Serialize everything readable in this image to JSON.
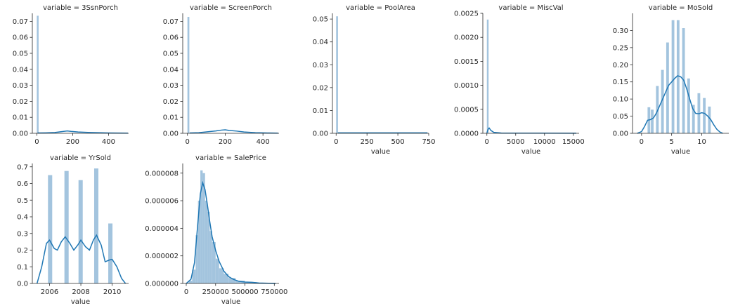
{
  "chart_data": [
    {
      "type": "bar",
      "title": "variable = 3SsnPorch",
      "xlabel": "",
      "xlim": [
        -25,
        512
      ],
      "ylim": [
        0,
        0.075
      ],
      "xticks": [
        0,
        200,
        400
      ],
      "xtick_labels": [
        "0",
        "200",
        "400"
      ],
      "yticks": [
        0,
        0.01,
        0.02,
        0.03,
        0.04,
        0.05,
        0.06,
        0.07
      ],
      "ytick_labels": [
        "0.00",
        "0.01",
        "0.02",
        "0.03",
        "0.04",
        "0.05",
        "0.06",
        "0.07"
      ],
      "bins": [
        [
          0,
          10,
          0.0735
        ]
      ],
      "kde": [
        [
          5,
          0.0002
        ],
        [
          50,
          0.0003
        ],
        [
          100,
          0.0005
        ],
        [
          150,
          0.0012
        ],
        [
          170,
          0.0015
        ],
        [
          190,
          0.0012
        ],
        [
          230,
          0.0008
        ],
        [
          300,
          0.0005
        ],
        [
          400,
          0.0002
        ],
        [
          508,
          0.0001
        ]
      ]
    },
    {
      "type": "bar",
      "title": "variable = ScreenPorch",
      "xlabel": "",
      "xlim": [
        -25,
        485
      ],
      "ylim": [
        0,
        0.075
      ],
      "xticks": [
        0,
        200,
        400
      ],
      "xtick_labels": [
        "0",
        "200",
        "400"
      ],
      "yticks": [
        0,
        0.01,
        0.02,
        0.03,
        0.04,
        0.05,
        0.06,
        0.07
      ],
      "ytick_labels": [
        "0.00",
        "0.01",
        "0.02",
        "0.03",
        "0.04",
        "0.05",
        "0.06",
        "0.07"
      ],
      "bins": [
        [
          0,
          10,
          0.0728
        ]
      ],
      "kde": [
        [
          12,
          0.0002
        ],
        [
          60,
          0.0004
        ],
        [
          110,
          0.001
        ],
        [
          150,
          0.0015
        ],
        [
          180,
          0.002
        ],
        [
          200,
          0.0022
        ],
        [
          220,
          0.0018
        ],
        [
          260,
          0.0014
        ],
        [
          300,
          0.0008
        ],
        [
          360,
          0.0004
        ],
        [
          420,
          0.0002
        ],
        [
          480,
          0.0001
        ]
      ]
    },
    {
      "type": "bar",
      "title": "variable = PoolArea",
      "xlabel": "value",
      "xlim": [
        -30,
        750
      ],
      "ylim": [
        0,
        0.0525
      ],
      "xticks": [
        0,
        250,
        500,
        750
      ],
      "xtick_labels": [
        "0",
        "250",
        "500",
        "750"
      ],
      "yticks": [
        0,
        0.01,
        0.02,
        0.03,
        0.04,
        0.05
      ],
      "ytick_labels": [
        "0.00",
        "0.01",
        "0.02",
        "0.03",
        "0.04",
        "0.05"
      ],
      "bins": [
        [
          0,
          15,
          0.0512
        ]
      ],
      "kde": [
        [
          15,
          0.0002
        ],
        [
          200,
          0.0002
        ],
        [
          400,
          0.0002
        ],
        [
          600,
          0.0002
        ],
        [
          740,
          0.0002
        ]
      ]
    },
    {
      "type": "bar",
      "title": "variable = MiscVal",
      "xlabel": "value",
      "xlim": [
        -700,
        16000
      ],
      "ylim": [
        0,
        0.0025
      ],
      "xticks": [
        0,
        5000,
        10000,
        15000
      ],
      "xtick_labels": [
        "0",
        "5000",
        "10000",
        "15000"
      ],
      "yticks": [
        0,
        0.0005,
        0.001,
        0.0015,
        0.002,
        0.0025
      ],
      "ytick_labels": [
        "0.0000",
        "0.0005",
        "0.0010",
        "0.0015",
        "0.0020",
        "0.0025"
      ],
      "bins": [
        [
          0,
          300,
          0.00237
        ]
      ],
      "kde": [
        [
          0,
          1e-05
        ],
        [
          200,
          8e-05
        ],
        [
          400,
          0.00011
        ],
        [
          700,
          6e-05
        ],
        [
          1200,
          2e-05
        ],
        [
          2500,
          5e-06
        ],
        [
          5000,
          3e-06
        ],
        [
          8000,
          3e-06
        ],
        [
          15500,
          2e-06
        ]
      ]
    },
    {
      "type": "bar",
      "title": "variable = MoSold",
      "xlabel": "value",
      "xlim": [
        -1.5,
        14.5
      ],
      "ylim": [
        0,
        0.35
      ],
      "xticks": [
        0,
        5,
        10
      ],
      "xtick_labels": [
        "0",
        "5",
        "10"
      ],
      "yticks": [
        0,
        0.05,
        0.1,
        0.15,
        0.2,
        0.25,
        0.3
      ],
      "ytick_labels": [
        "0.00",
        "0.05",
        "0.10",
        "0.15",
        "0.20",
        "0.25",
        "0.30"
      ],
      "bins": [
        [
          1.0,
          1.45,
          0.076
        ],
        [
          1.55,
          2.0,
          0.069
        ],
        [
          2.4,
          2.85,
          0.138
        ],
        [
          3.25,
          3.7,
          0.185
        ],
        [
          4.1,
          4.55,
          0.265
        ],
        [
          5.0,
          5.45,
          0.33
        ],
        [
          5.85,
          6.3,
          0.33
        ],
        [
          6.75,
          7.2,
          0.307
        ],
        [
          7.6,
          8.05,
          0.16
        ],
        [
          8.4,
          8.85,
          0.083
        ],
        [
          9.3,
          9.75,
          0.117
        ],
        [
          10.2,
          10.65,
          0.103
        ],
        [
          11.05,
          11.5,
          0.078
        ]
      ],
      "kde": [
        [
          -0.7,
          0.0
        ],
        [
          0,
          0.005
        ],
        [
          0.5,
          0.02
        ],
        [
          1,
          0.038
        ],
        [
          1.5,
          0.04
        ],
        [
          2,
          0.045
        ],
        [
          2.5,
          0.06
        ],
        [
          3,
          0.08
        ],
        [
          3.5,
          0.1
        ],
        [
          4,
          0.12
        ],
        [
          4.5,
          0.14
        ],
        [
          5,
          0.15
        ],
        [
          5.5,
          0.16
        ],
        [
          6,
          0.168
        ],
        [
          6.5,
          0.165
        ],
        [
          7,
          0.155
        ],
        [
          7.5,
          0.13
        ],
        [
          8,
          0.1
        ],
        [
          8.5,
          0.072
        ],
        [
          9,
          0.058
        ],
        [
          9.5,
          0.057
        ],
        [
          10,
          0.06
        ],
        [
          10.5,
          0.058
        ],
        [
          11,
          0.05
        ],
        [
          11.5,
          0.04
        ],
        [
          12,
          0.025
        ],
        [
          12.5,
          0.012
        ],
        [
          13,
          0.004
        ],
        [
          13.5,
          0.0
        ]
      ]
    },
    {
      "type": "bar",
      "title": "variable = YrSold",
      "xlabel": "value",
      "xlim": [
        2004.9,
        2011.05
      ],
      "ylim": [
        0,
        0.72
      ],
      "xticks": [
        2006,
        2008,
        2010
      ],
      "xtick_labels": [
        "2006",
        "2008",
        "2010"
      ],
      "yticks": [
        0,
        0.1,
        0.2,
        0.3,
        0.4,
        0.5,
        0.6,
        0.7
      ],
      "ytick_labels": [
        "0.0",
        "0.1",
        "0.2",
        "0.3",
        "0.4",
        "0.5",
        "0.6",
        "0.7"
      ],
      "bins": [
        [
          2005.9,
          2006.17,
          0.65
        ],
        [
          2006.95,
          2007.22,
          0.675
        ],
        [
          2007.85,
          2008.12,
          0.62
        ],
        [
          2008.85,
          2009.12,
          0.69
        ],
        [
          2009.75,
          2010.02,
          0.36
        ]
      ],
      "kde": [
        [
          2005.2,
          0.0
        ],
        [
          2005.5,
          0.1
        ],
        [
          2005.8,
          0.24
        ],
        [
          2006.0,
          0.26
        ],
        [
          2006.3,
          0.21
        ],
        [
          2006.5,
          0.2
        ],
        [
          2006.75,
          0.25
        ],
        [
          2007.0,
          0.28
        ],
        [
          2007.3,
          0.24
        ],
        [
          2007.55,
          0.2
        ],
        [
          2007.8,
          0.23
        ],
        [
          2008.0,
          0.26
        ],
        [
          2008.3,
          0.22
        ],
        [
          2008.55,
          0.2
        ],
        [
          2008.8,
          0.26
        ],
        [
          2009.0,
          0.29
        ],
        [
          2009.3,
          0.23
        ],
        [
          2009.55,
          0.13
        ],
        [
          2009.8,
          0.14
        ],
        [
          2010.0,
          0.145
        ],
        [
          2010.3,
          0.1
        ],
        [
          2010.6,
          0.03
        ],
        [
          2010.85,
          0.0
        ]
      ]
    },
    {
      "type": "bar",
      "title": "variable = SalePrice",
      "xlabel": "value",
      "xlim": [
        -30000,
        790000
      ],
      "ylim": [
        0,
        8.7e-06
      ],
      "xticks": [
        0,
        250000,
        500000,
        750000
      ],
      "xtick_labels": [
        "0",
        "250000",
        "500000",
        "750000"
      ],
      "yticks": [
        0,
        2e-06,
        4e-06,
        6e-06,
        8e-06
      ],
      "ytick_labels": [
        "0.000000",
        "0.000002",
        "0.000004",
        "0.000006",
        "0.000008"
      ],
      "bins": [
        [
          20000,
          50000,
          2e-07
        ],
        [
          50000,
          80000,
          1e-06
        ],
        [
          80000,
          100000,
          3.5e-06
        ],
        [
          100000,
          120000,
          6e-06
        ],
        [
          120000,
          140000,
          8.2e-06
        ],
        [
          140000,
          160000,
          8e-06
        ],
        [
          160000,
          180000,
          6e-06
        ],
        [
          180000,
          200000,
          5.2e-06
        ],
        [
          200000,
          220000,
          3.8e-06
        ],
        [
          220000,
          250000,
          3e-06
        ],
        [
          250000,
          280000,
          1.8e-06
        ],
        [
          280000,
          320000,
          1.1e-06
        ],
        [
          320000,
          360000,
          7e-07
        ],
        [
          360000,
          420000,
          4e-07
        ],
        [
          420000,
          500000,
          2e-07
        ],
        [
          500000,
          600000,
          1e-07
        ],
        [
          600000,
          760000,
          5e-08
        ]
      ],
      "kde": [
        [
          0,
          0.0
        ],
        [
          40000,
          3e-07
        ],
        [
          70000,
          1.5e-06
        ],
        [
          100000,
          4.5e-06
        ],
        [
          120000,
          6.5e-06
        ],
        [
          140000,
          7.3e-06
        ],
        [
          160000,
          6.8e-06
        ],
        [
          180000,
          5.7e-06
        ],
        [
          200000,
          4.5e-06
        ],
        [
          220000,
          3.4e-06
        ],
        [
          250000,
          2.4e-06
        ],
        [
          280000,
          1.6e-06
        ],
        [
          320000,
          9e-07
        ],
        [
          360000,
          5e-07
        ],
        [
          400000,
          3e-07
        ],
        [
          450000,
          1.5e-07
        ],
        [
          500000,
          1e-07
        ],
        [
          560000,
          8e-08
        ],
        [
          620000,
          3e-08
        ],
        [
          700000,
          1e-08
        ],
        [
          760000,
          0.0
        ]
      ]
    }
  ]
}
